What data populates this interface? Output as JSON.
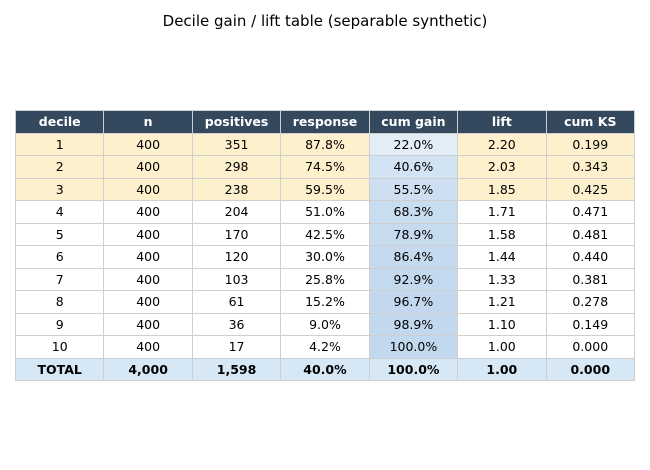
{
  "chart_data": {
    "type": "table",
    "title": "Decile gain / lift table (separable synthetic)",
    "columns": [
      "decile",
      "n",
      "positives",
      "response",
      "cum gain",
      "lift",
      "cum KS"
    ],
    "rows": [
      [
        "1",
        "400",
        "351",
        "87.8%",
        "22.0%",
        "2.20",
        "0.199"
      ],
      [
        "2",
        "400",
        "298",
        "74.5%",
        "40.6%",
        "2.03",
        "0.343"
      ],
      [
        "3",
        "400",
        "238",
        "59.5%",
        "55.5%",
        "1.85",
        "0.425"
      ],
      [
        "4",
        "400",
        "204",
        "51.0%",
        "68.3%",
        "1.71",
        "0.471"
      ],
      [
        "5",
        "400",
        "170",
        "42.5%",
        "78.9%",
        "1.58",
        "0.481"
      ],
      [
        "6",
        "400",
        "120",
        "30.0%",
        "86.4%",
        "1.44",
        "0.440"
      ],
      [
        "7",
        "400",
        "103",
        "25.8%",
        "92.9%",
        "1.33",
        "0.381"
      ],
      [
        "8",
        "400",
        "61",
        "15.2%",
        "96.7%",
        "1.21",
        "0.278"
      ],
      [
        "9",
        "400",
        "36",
        "9.0%",
        "98.9%",
        "1.10",
        "0.149"
      ],
      [
        "10",
        "400",
        "17",
        "4.2%",
        "100.0%",
        "1.00",
        "0.000"
      ]
    ],
    "total_row": [
      "TOTAL",
      "4,000",
      "1,598",
      "40.0%",
      "100.0%",
      "1.00",
      "0.000"
    ],
    "highlighted_top_deciles": 3,
    "cum_gain_values": [
      22.0,
      40.6,
      55.5,
      68.3,
      78.9,
      86.4,
      92.9,
      96.7,
      98.9,
      100.0
    ],
    "colors": {
      "header": "#34495e",
      "header_text": "#ffffff",
      "top_decile_fill": "#fdf0cc",
      "total_fill": "#d6e8f5",
      "gain_low": "#e2edf8",
      "gain_high": "#c2d8ee",
      "border": "#cfcfcf"
    }
  }
}
